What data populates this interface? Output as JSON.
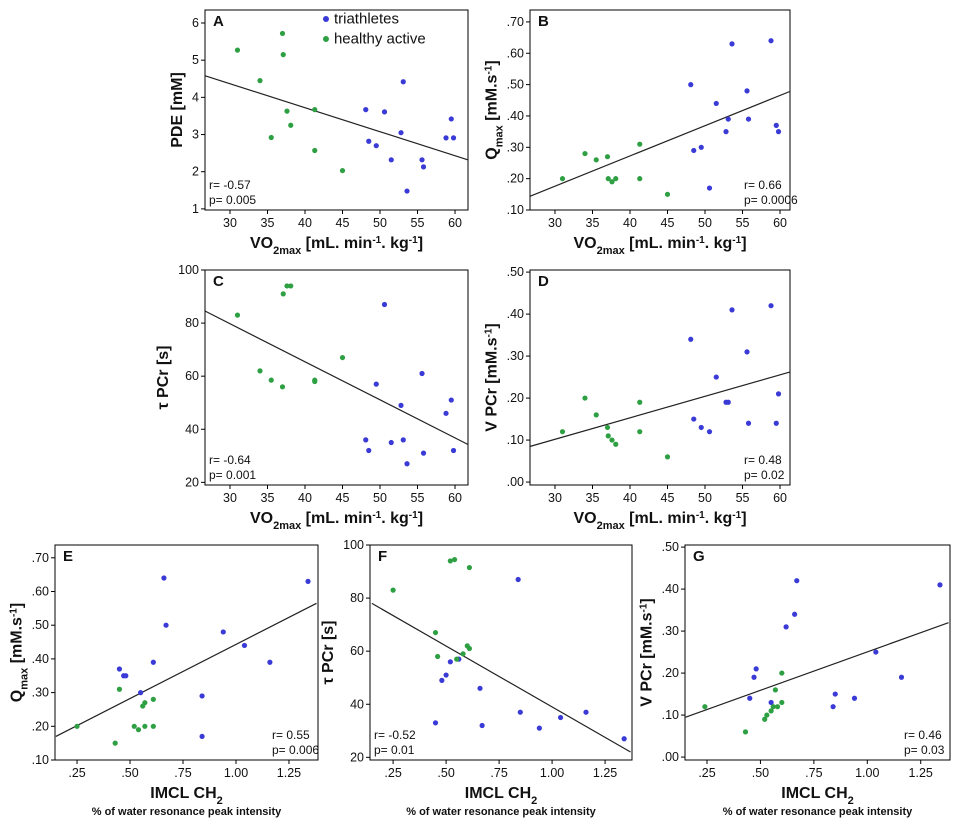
{
  "chart_data": [
    {
      "type": "scatter",
      "panel": "A",
      "legend": "upper right",
      "y_label": [
        "PDE [mM]"
      ],
      "x_label": [
        "VO",
        {
          "sub": "2max"
        },
        " [mL. min",
        {
          "sup": "-1"
        },
        ". kg",
        {
          "sup": "-1"
        },
        "]"
      ],
      "xlim": [
        26.67,
        61.73
      ],
      "xticks": [
        30,
        35,
        40,
        45,
        50,
        55,
        60
      ],
      "ylim": [
        0.97,
        6.35
      ],
      "yticks": [
        1,
        2,
        3,
        4,
        5,
        6
      ],
      "series": [
        {
          "name": "triathletes",
          "color": "#3a3ad6",
          "x": [
            48.1,
            48.5,
            49.5,
            50.6,
            51.5,
            52.8,
            53.1,
            53.6,
            55.6,
            55.8,
            58.8,
            59.5,
            59.8
          ],
          "values": [
            3.67,
            2.82,
            2.7,
            3.61,
            2.32,
            3.05,
            4.42,
            1.48,
            2.32,
            2.13,
            2.91,
            3.42,
            2.91
          ]
        },
        {
          "name": "healthy active",
          "color": "#2ea043",
          "x": [
            31,
            34,
            35.5,
            37,
            37.1,
            37.6,
            38.1,
            41.3,
            41.3,
            45
          ],
          "values": [
            5.27,
            4.45,
            2.92,
            5.72,
            5.15,
            3.63,
            3.25,
            3.67,
            2.57,
            2.03
          ]
        }
      ],
      "fit": {
        "x": [
          26.7,
          61.7
        ],
        "values": [
          4.58,
          2.32
        ]
      },
      "annotations": [
        "r= -0.57",
        "p= 0.005"
      ],
      "annotation_corner": "lower left"
    },
    {
      "type": "scatter",
      "panel": "B",
      "y_label": [
        "Q",
        {
          "sub": "max"
        },
        " [mM.s",
        {
          "sup": "-1"
        },
        "]"
      ],
      "x_label": [
        "VO",
        {
          "sub": "2max"
        },
        " [mL. min",
        {
          "sup": "-1"
        },
        ". kg",
        {
          "sup": "-1"
        },
        "]"
      ],
      "xlim": [
        26.67,
        61.33
      ],
      "xticks": [
        30,
        35,
        40,
        45,
        50,
        55,
        60
      ],
      "ylim": [
        0.1,
        0.738
      ],
      "yticks": [
        {
          "value": 0.1,
          "label": ".10"
        },
        {
          "value": 0.2,
          "label": ".20"
        },
        {
          "value": 0.3,
          "label": ".30"
        },
        {
          "value": 0.4,
          "label": ".40"
        },
        {
          "value": 0.5,
          "label": ".50"
        },
        {
          "value": 0.6,
          "label": ".60"
        },
        {
          "value": 0.7,
          "label": ".70"
        }
      ],
      "series": [
        {
          "color": "#3a3ad6",
          "x": [
            48.1,
            48.5,
            49.5,
            50.6,
            51.5,
            52.8,
            53.1,
            53.6,
            55.6,
            55.8,
            58.8,
            59.5,
            59.8
          ],
          "values": [
            0.5,
            0.29,
            0.3,
            0.17,
            0.44,
            0.35,
            0.39,
            0.63,
            0.48,
            0.39,
            0.64,
            0.37,
            0.35
          ]
        },
        {
          "color": "#2ea043",
          "x": [
            31,
            34,
            35.5,
            37,
            37.1,
            37.6,
            38.1,
            41.3,
            41.3,
            45
          ],
          "values": [
            0.2,
            0.28,
            0.26,
            0.27,
            0.2,
            0.19,
            0.2,
            0.31,
            0.2,
            0.15
          ]
        }
      ],
      "fit": {
        "x": [
          26.7,
          61.3
        ],
        "values": [
          0.144,
          0.478
        ]
      },
      "annotations": [
        "r= 0.66",
        "p= 0.0006"
      ],
      "annotation_corner": "lower right"
    },
    {
      "type": "scatter",
      "panel": "C",
      "y_label": [
        "τ PCr [s]"
      ],
      "x_label": [
        "VO",
        {
          "sub": "2max"
        },
        " [mL. min",
        {
          "sup": "-1"
        },
        ". kg",
        {
          "sup": "-1"
        },
        "]"
      ],
      "xlim": [
        26.67,
        61.73
      ],
      "xticks": [
        30,
        35,
        40,
        45,
        50,
        55,
        60
      ],
      "ylim": [
        19,
        100
      ],
      "yticks": [
        20,
        40,
        60,
        80,
        100
      ],
      "series": [
        {
          "color": "#3a3ad6",
          "x": [
            48.1,
            48.5,
            49.5,
            50.6,
            51.5,
            52.8,
            53.1,
            53.6,
            55.6,
            55.8,
            58.8,
            59.5,
            59.8
          ],
          "values": [
            36,
            32,
            57,
            87,
            35,
            49,
            36,
            27,
            61,
            31,
            46,
            51,
            32
          ]
        },
        {
          "color": "#2ea043",
          "x": [
            31,
            34,
            35.5,
            37,
            37.1,
            37.6,
            38.1,
            41.3,
            41.3,
            45
          ],
          "values": [
            83,
            62,
            58.5,
            56,
            91,
            94,
            94,
            58,
            58.5,
            67
          ]
        }
      ],
      "fit": {
        "x": [
          26.7,
          61.7
        ],
        "values": [
          84.5,
          34.3
        ]
      },
      "annotations": [
        "r= -0.64",
        "p= 0.001"
      ],
      "annotation_corner": "lower left"
    },
    {
      "type": "scatter",
      "panel": "D",
      "y_label": [
        "V PCr [mM.s",
        {
          "sup": "-1"
        },
        "]"
      ],
      "x_label": [
        "VO",
        {
          "sub": "2max"
        },
        " [mL. min",
        {
          "sup": "-1"
        },
        ". kg",
        {
          "sup": "-1"
        },
        "]"
      ],
      "xlim": [
        26.67,
        61.33
      ],
      "xticks": [
        30,
        35,
        40,
        45,
        50,
        55,
        60
      ],
      "ylim": [
        -0.007,
        0.505
      ],
      "yticks": [
        {
          "value": 0,
          "label": ".00"
        },
        {
          "value": 0.1,
          "label": ".10"
        },
        {
          "value": 0.2,
          "label": ".20"
        },
        {
          "value": 0.3,
          "label": ".30"
        },
        {
          "value": 0.4,
          "label": ".40"
        },
        {
          "value": 0.5,
          "label": ".50"
        }
      ],
      "series": [
        {
          "color": "#3a3ad6",
          "x": [
            48.1,
            48.5,
            49.5,
            50.6,
            51.5,
            52.8,
            53.1,
            53.6,
            55.6,
            55.8,
            58.8,
            59.5,
            59.8
          ],
          "values": [
            0.34,
            0.15,
            0.13,
            0.12,
            0.25,
            0.19,
            0.19,
            0.41,
            0.31,
            0.14,
            0.42,
            0.14,
            0.21
          ]
        },
        {
          "color": "#2ea043",
          "x": [
            31,
            34,
            35.5,
            37,
            37.1,
            37.6,
            38.1,
            41.3,
            41.3,
            45
          ],
          "values": [
            0.12,
            0.2,
            0.16,
            0.13,
            0.11,
            0.1,
            0.09,
            0.19,
            0.12,
            0.06
          ]
        }
      ],
      "fit": {
        "x": [
          26.7,
          61.3
        ],
        "values": [
          0.085,
          0.262
        ]
      },
      "annotations": [
        "r= 0.48",
        "p= 0.02"
      ],
      "annotation_corner": "lower right"
    },
    {
      "type": "scatter",
      "panel": "E",
      "y_label": [
        "Q",
        {
          "sub": "max"
        },
        " [mM.s",
        {
          "sup": "-1"
        },
        "]"
      ],
      "x_label": [
        "IMCL CH",
        {
          "sub": "2"
        }
      ],
      "x_sublabel": "% of water resonance peak intensity",
      "xlim": [
        0.146,
        1.387
      ],
      "xticks": [
        {
          "value": 0.25,
          "label": ".25"
        },
        {
          "value": 0.5,
          "label": ".50"
        },
        {
          "value": 0.75,
          "label": ".75"
        },
        {
          "value": 1,
          "label": "1.00"
        },
        {
          "value": 1.25,
          "label": "1.25"
        }
      ],
      "ylim": [
        0.1,
        0.738
      ],
      "yticks": [
        {
          "value": 0.1,
          "label": ".10"
        },
        {
          "value": 0.2,
          "label": ".20"
        },
        {
          "value": 0.3,
          "label": ".30"
        },
        {
          "value": 0.4,
          "label": ".40"
        },
        {
          "value": 0.5,
          "label": ".50"
        },
        {
          "value": 0.6,
          "label": ".60"
        },
        {
          "value": 0.7,
          "label": ".70"
        }
      ],
      "series": [
        {
          "color": "#3a3ad6",
          "x": [
            0.45,
            0.47,
            0.48,
            0.55,
            0.61,
            0.66,
            0.67,
            0.84,
            0.84,
            0.94,
            1.04,
            1.16,
            1.34
          ],
          "values": [
            0.37,
            0.35,
            0.35,
            0.3,
            0.39,
            0.64,
            0.5,
            0.29,
            0.17,
            0.48,
            0.44,
            0.39,
            0.63
          ]
        },
        {
          "color": "#2ea043",
          "x": [
            0.25,
            0.43,
            0.45,
            0.52,
            0.54,
            0.56,
            0.57,
            0.57,
            0.61,
            0.61
          ],
          "values": [
            0.2,
            0.15,
            0.31,
            0.2,
            0.19,
            0.26,
            0.27,
            0.2,
            0.2,
            0.28
          ]
        }
      ],
      "fit": {
        "x": [
          0.15,
          1.38
        ],
        "values": [
          0.17,
          0.565
        ]
      },
      "annotations": [
        "r= 0.55",
        "p= 0.006"
      ],
      "annotation_corner": "lower right"
    },
    {
      "type": "scatter",
      "panel": "F",
      "y_label": [
        "τ PCr [s]"
      ],
      "x_label": [
        "IMCL CH",
        {
          "sub": "2"
        }
      ],
      "x_sublabel": "% of water resonance peak intensity",
      "xlim": [
        0.141,
        1.377
      ],
      "xticks": [
        {
          "value": 0.25,
          "label": ".25"
        },
        {
          "value": 0.5,
          "label": ".50"
        },
        {
          "value": 0.75,
          "label": ".75"
        },
        {
          "value": 1,
          "label": "1.00"
        },
        {
          "value": 1.25,
          "label": "1.25"
        }
      ],
      "ylim": [
        19,
        100
      ],
      "yticks": [
        20,
        40,
        60,
        80,
        100
      ],
      "series": [
        {
          "color": "#3a3ad6",
          "x": [
            0.45,
            0.48,
            0.5,
            0.52,
            0.56,
            0.66,
            0.67,
            0.84,
            0.85,
            0.94,
            1.04,
            1.16,
            1.34
          ],
          "values": [
            33,
            49,
            51,
            56,
            57,
            46,
            32,
            87,
            37,
            31,
            35,
            37,
            27
          ]
        },
        {
          "color": "#2ea043",
          "x": [
            0.25,
            0.45,
            0.46,
            0.52,
            0.54,
            0.55,
            0.58,
            0.6,
            0.61,
            0.61
          ],
          "values": [
            83,
            67,
            58,
            94,
            94.5,
            57,
            59,
            62,
            61,
            91.5
          ]
        }
      ],
      "fit": {
        "x": [
          0.15,
          1.37
        ],
        "values": [
          78,
          22
        ]
      },
      "annotations": [
        "r= -0.52",
        "p= 0.01"
      ],
      "annotation_corner": "lower left"
    },
    {
      "type": "scatter",
      "panel": "G",
      "y_label": [
        "V PCr [mM.s",
        {
          "sup": "-1"
        },
        "]"
      ],
      "x_label": [
        "IMCL CH",
        {
          "sub": "2"
        }
      ],
      "x_sublabel": "% of water resonance peak intensity",
      "xlim": [
        0.147,
        1.387
      ],
      "xticks": [
        {
          "value": 0.25,
          "label": ".25"
        },
        {
          "value": 0.5,
          "label": ".50"
        },
        {
          "value": 0.75,
          "label": ".75"
        },
        {
          "value": 1,
          "label": "1.00"
        },
        {
          "value": 1.25,
          "label": "1.25"
        }
      ],
      "ylim": [
        -0.007,
        0.505
      ],
      "yticks": [
        {
          "value": 0,
          "label": ".00"
        },
        {
          "value": 0.1,
          "label": ".10"
        },
        {
          "value": 0.2,
          "label": ".20"
        },
        {
          "value": 0.3,
          "label": ".30"
        },
        {
          "value": 0.4,
          "label": ".40"
        },
        {
          "value": 0.5,
          "label": ".50"
        }
      ],
      "series": [
        {
          "color": "#3a3ad6",
          "x": [
            0.45,
            0.47,
            0.48,
            0.55,
            0.62,
            0.66,
            0.67,
            0.84,
            0.85,
            0.94,
            1.04,
            1.16,
            1.34
          ],
          "values": [
            0.14,
            0.19,
            0.21,
            0.13,
            0.31,
            0.34,
            0.42,
            0.12,
            0.15,
            0.14,
            0.25,
            0.19,
            0.41
          ]
        },
        {
          "color": "#2ea043",
          "x": [
            0.24,
            0.43,
            0.52,
            0.53,
            0.55,
            0.56,
            0.57,
            0.58,
            0.6,
            0.6
          ],
          "values": [
            0.12,
            0.06,
            0.09,
            0.1,
            0.11,
            0.12,
            0.16,
            0.12,
            0.13,
            0.2
          ]
        }
      ],
      "fit": {
        "x": [
          0.15,
          1.38
        ],
        "values": [
          0.095,
          0.32
        ]
      },
      "annotations": [
        "r= 0.46",
        "p= 0.03"
      ],
      "annotation_corner": "lower right"
    }
  ]
}
